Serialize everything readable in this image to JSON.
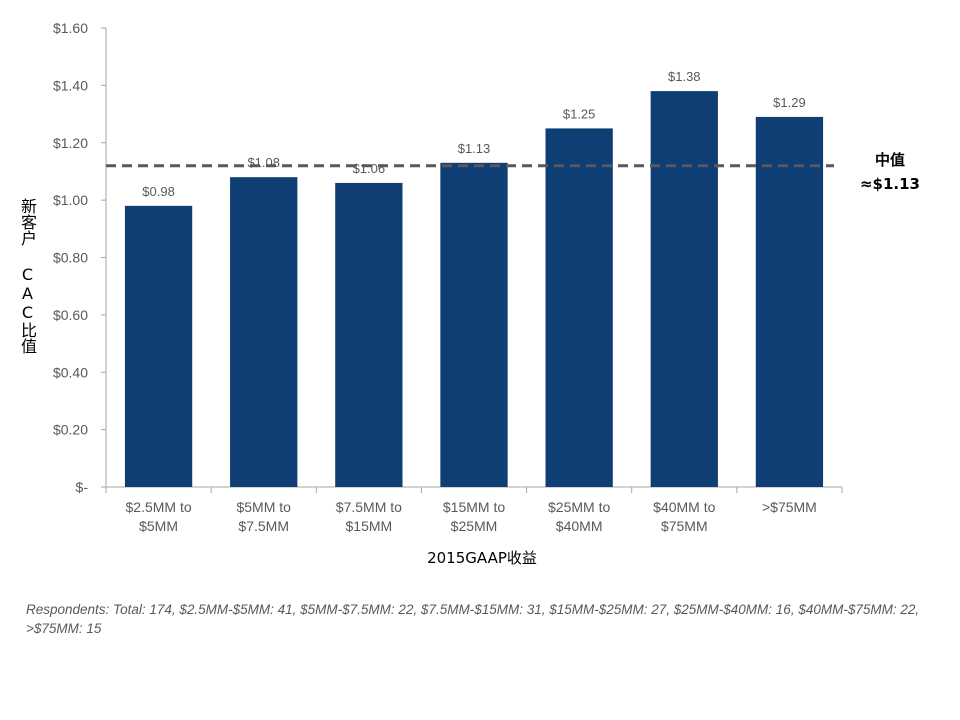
{
  "chart_data": {
    "type": "bar",
    "categories": [
      [
        "$2.5MM to",
        "$5MM"
      ],
      [
        "$5MM to",
        "$7.5MM"
      ],
      [
        "$7.5MM to",
        "$15MM"
      ],
      [
        "$15MM to",
        "$25MM"
      ],
      [
        "$25MM to",
        "$40MM"
      ],
      [
        "$40MM to",
        "$75MM"
      ],
      [
        ">$75MM"
      ]
    ],
    "values": [
      0.98,
      1.08,
      1.06,
      1.13,
      1.25,
      1.38,
      1.29
    ],
    "data_labels": [
      "$0.98",
      "$1.08",
      "$1.06",
      "$1.13",
      "$1.25",
      "$1.38",
      "$1.29"
    ],
    "yticks": [
      0,
      0.2,
      0.4,
      0.6,
      0.8,
      1.0,
      1.2,
      1.4,
      1.6
    ],
    "ytick_labels": [
      "$-",
      "$0.20",
      "$0.40",
      "$0.60",
      "$0.80",
      "$1.00",
      "$1.20",
      "$1.40",
      "$1.60"
    ],
    "ylim": [
      0,
      1.6
    ],
    "xlabel": "2015GAAP收益",
    "ylabel": "新客户 CAC比值",
    "grid": false,
    "bar_color": "#0e3e74",
    "median": {
      "value": 1.12,
      "label_line1": "中值",
      "label_line2": "≈$1.13",
      "color": "#595959"
    }
  },
  "footnote": "Respondents: Total: 174, $2.5MM-$5MM: 41, $5MM-$7.5MM: 22, $7.5MM-$15MM: 31, $15MM-$25MM: 27, $25MM-$40MM: 16, $40MM-$75MM: 22, >$75MM: 15"
}
